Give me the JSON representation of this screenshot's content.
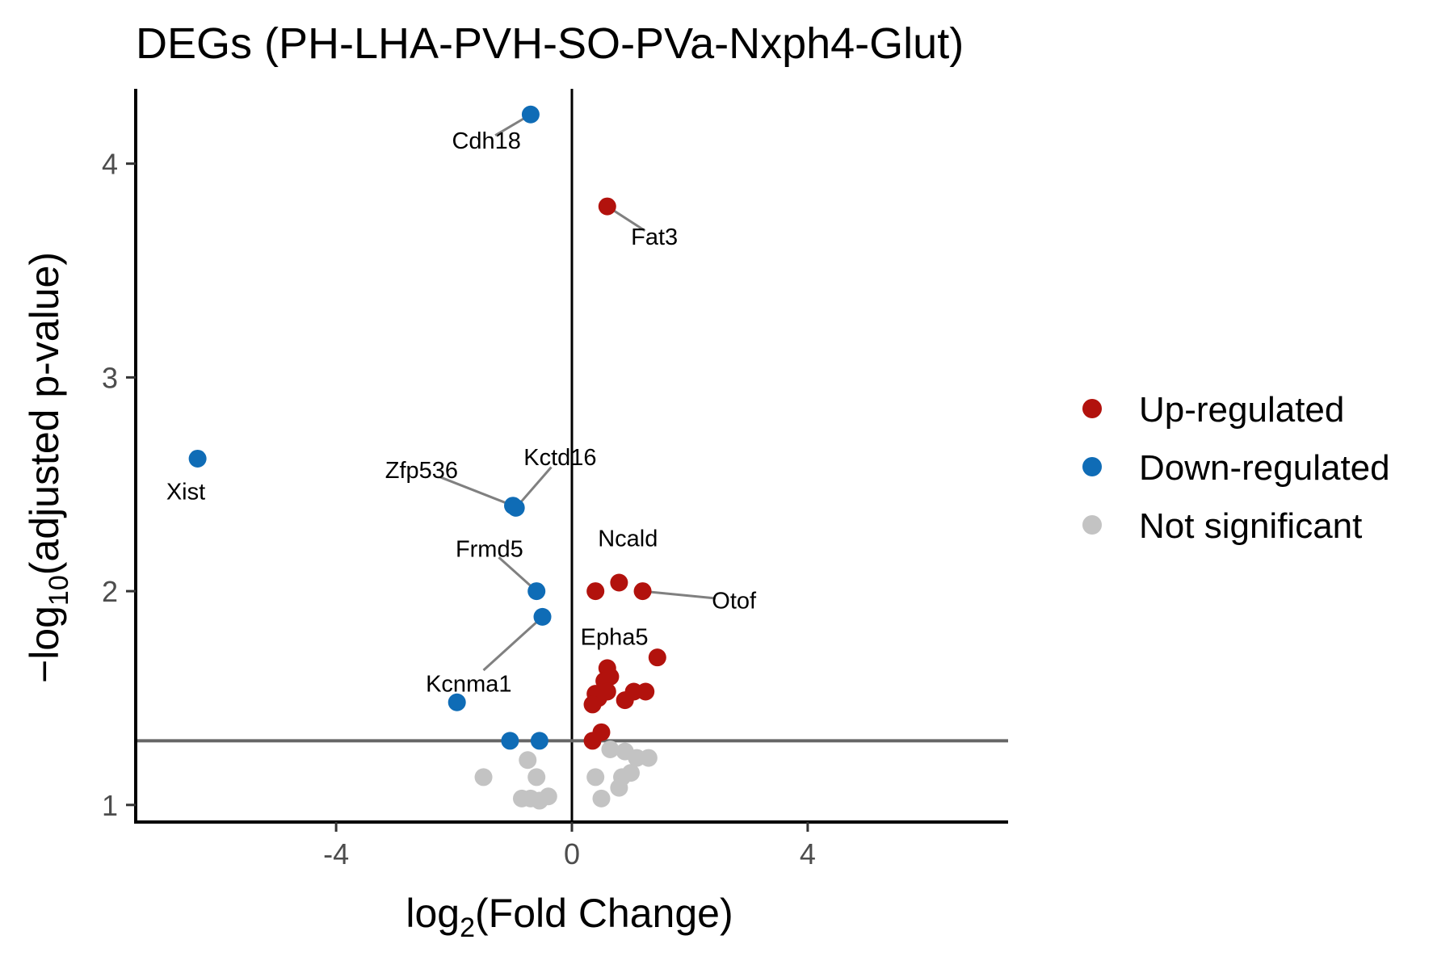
{
  "chart_data": {
    "type": "scatter",
    "title": "DEGs (PH-LHA-PVH-SO-PVa-Nxph4-Glut)",
    "xlabel": {
      "prefix": "log",
      "sub": "2",
      "rest": "(Fold Change)"
    },
    "ylabel": {
      "prefix": "−log",
      "sub": "10",
      "rest": "(adjusted p-value)"
    },
    "xlim": [
      -7.4,
      7.4
    ],
    "ylim": [
      0.92,
      4.35
    ],
    "x_ticks": [
      {
        "value": -4,
        "label": "-4"
      },
      {
        "value": 0,
        "label": "0"
      },
      {
        "value": 4,
        "label": "4"
      }
    ],
    "y_ticks": [
      {
        "value": 1,
        "label": "1"
      },
      {
        "value": 2,
        "label": "2"
      },
      {
        "value": 3,
        "label": "3"
      },
      {
        "value": 4,
        "label": "4"
      }
    ],
    "vline_x": 0,
    "hline_y": 1.3,
    "grid": false,
    "legend_position": "right",
    "series": [
      {
        "name": "Up-regulated",
        "color": "#B2120D",
        "points": [
          {
            "x": 0.6,
            "y": 3.8
          },
          {
            "x": 0.4,
            "y": 2.0
          },
          {
            "x": 0.8,
            "y": 2.04
          },
          {
            "x": 1.2,
            "y": 2.0
          },
          {
            "x": 1.45,
            "y": 1.69
          },
          {
            "x": 0.6,
            "y": 1.64
          },
          {
            "x": 0.65,
            "y": 1.6
          },
          {
            "x": 0.55,
            "y": 1.58
          },
          {
            "x": 0.6,
            "y": 1.53
          },
          {
            "x": 0.4,
            "y": 1.52
          },
          {
            "x": 0.45,
            "y": 1.5
          },
          {
            "x": 1.05,
            "y": 1.53
          },
          {
            "x": 1.25,
            "y": 1.53
          },
          {
            "x": 0.9,
            "y": 1.49
          },
          {
            "x": 0.35,
            "y": 1.47
          },
          {
            "x": 0.5,
            "y": 1.34
          },
          {
            "x": 0.35,
            "y": 1.3
          }
        ]
      },
      {
        "name": "Down-regulated",
        "color": "#0F6CB6",
        "points": [
          {
            "x": -0.7,
            "y": 4.23
          },
          {
            "x": -6.35,
            "y": 2.62
          },
          {
            "x": -1.0,
            "y": 2.4
          },
          {
            "x": -0.95,
            "y": 2.39
          },
          {
            "x": -0.6,
            "y": 2.0
          },
          {
            "x": -0.5,
            "y": 1.88
          },
          {
            "x": -1.95,
            "y": 1.48
          },
          {
            "x": -1.05,
            "y": 1.3
          },
          {
            "x": -0.55,
            "y": 1.3
          }
        ]
      },
      {
        "name": "Not significant",
        "color": "#C3C3C3",
        "points": [
          {
            "x": -1.5,
            "y": 1.13
          },
          {
            "x": -0.75,
            "y": 1.21
          },
          {
            "x": -0.6,
            "y": 1.13
          },
          {
            "x": -0.85,
            "y": 1.03
          },
          {
            "x": -0.7,
            "y": 1.03
          },
          {
            "x": -0.55,
            "y": 1.02
          },
          {
            "x": -0.4,
            "y": 1.04
          },
          {
            "x": 0.4,
            "y": 1.13
          },
          {
            "x": 0.65,
            "y": 1.26
          },
          {
            "x": 0.9,
            "y": 1.25
          },
          {
            "x": 1.1,
            "y": 1.22
          },
          {
            "x": 1.3,
            "y": 1.22
          },
          {
            "x": 0.85,
            "y": 1.13
          },
          {
            "x": 1.0,
            "y": 1.15
          },
          {
            "x": 0.8,
            "y": 1.08
          },
          {
            "x": 0.5,
            "y": 1.03
          }
        ]
      }
    ],
    "annotations": [
      {
        "text": "Cdh18",
        "point": [
          -0.7,
          4.23
        ],
        "label_at": [
          -1.45,
          4.07
        ],
        "anchor": "middle",
        "leader": true
      },
      {
        "text": "Fat3",
        "point": [
          0.6,
          3.8
        ],
        "label_at": [
          1.4,
          3.62
        ],
        "anchor": "middle",
        "leader": true
      },
      {
        "text": "Xist",
        "point": [
          -6.35,
          2.62
        ],
        "label_at": [
          -6.55,
          2.43
        ],
        "anchor": "middle",
        "leader": false
      },
      {
        "text": "Zfp536",
        "point": [
          -1.0,
          2.4
        ],
        "label_at": [
          -2.55,
          2.53
        ],
        "anchor": "middle",
        "leader": true
      },
      {
        "text": "Kctd16",
        "point": [
          -0.95,
          2.39
        ],
        "label_at": [
          -0.2,
          2.59
        ],
        "anchor": "middle",
        "leader": true
      },
      {
        "text": "Frmd5",
        "point": [
          -0.6,
          2.0
        ],
        "label_at": [
          -1.4,
          2.16
        ],
        "anchor": "middle",
        "leader": true
      },
      {
        "text": "Ncald",
        "point": [
          0.8,
          2.04
        ],
        "label_at": [
          0.95,
          2.21
        ],
        "anchor": "middle",
        "leader": false
      },
      {
        "text": "Otof",
        "point": [
          1.2,
          2.0
        ],
        "label_at": [
          2.75,
          1.92
        ],
        "anchor": "middle",
        "leader": true
      },
      {
        "text": "Epha5",
        "point": [
          0.6,
          1.64
        ],
        "label_at": [
          0.72,
          1.75
        ],
        "anchor": "middle",
        "leader": false
      },
      {
        "text": "Kcnma1",
        "point": [
          -0.5,
          1.88
        ],
        "label_at": [
          -1.75,
          1.53
        ],
        "anchor": "middle",
        "leader": true
      }
    ]
  }
}
